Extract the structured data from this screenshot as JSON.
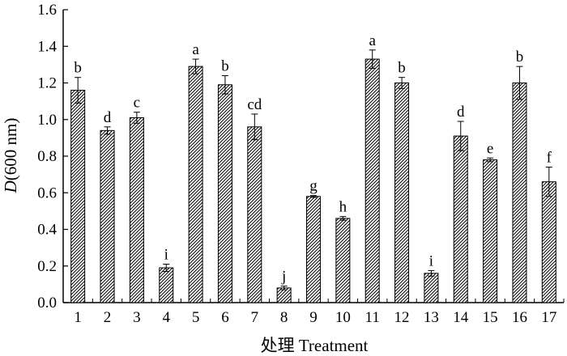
{
  "chart_data": {
    "type": "bar",
    "categories": [
      "1",
      "2",
      "3",
      "4",
      "5",
      "6",
      "7",
      "8",
      "9",
      "10",
      "11",
      "12",
      "13",
      "14",
      "15",
      "16",
      "17"
    ],
    "values": [
      1.16,
      0.94,
      1.01,
      0.19,
      1.29,
      1.19,
      0.96,
      0.08,
      0.58,
      0.46,
      1.33,
      1.2,
      0.16,
      0.91,
      0.78,
      1.2,
      0.66
    ],
    "errors": [
      0.07,
      0.02,
      0.03,
      0.02,
      0.04,
      0.05,
      0.07,
      0.01,
      0.005,
      0.01,
      0.05,
      0.03,
      0.015,
      0.08,
      0.01,
      0.09,
      0.08
    ],
    "significance": [
      "b",
      "d",
      "c",
      "i",
      "a",
      "b",
      "cd",
      "j",
      "g",
      "h",
      "a",
      "b",
      "i",
      "d",
      "e",
      "b",
      "f"
    ],
    "xlabel": "处理 Treatment",
    "ylabel_italic": "D",
    "ylabel_rest": "(600 nm)",
    "ylim": [
      0,
      1.6
    ],
    "yticks": [
      "0.0",
      "0.2",
      "0.4",
      "0.6",
      "0.8",
      "1.0",
      "1.2",
      "1.4",
      "1.6"
    ],
    "grid": false,
    "bar_fill": "hatched",
    "bar_color": "#000000"
  }
}
